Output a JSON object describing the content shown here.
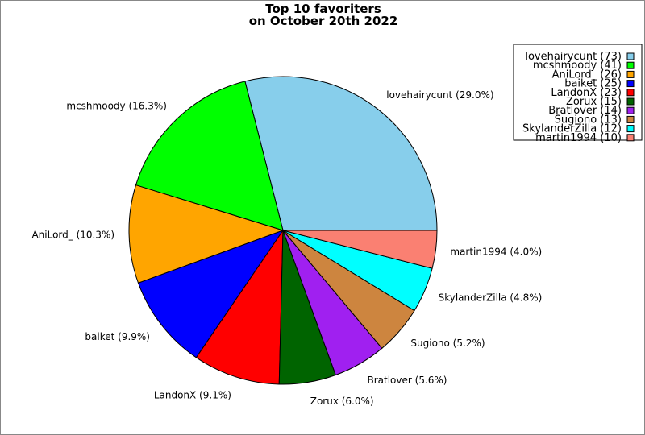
{
  "chart_data": {
    "type": "pie",
    "title": [
      "Top 10 favoriters",
      "on October 20th 2022"
    ],
    "start_angle_deg": 0,
    "direction": "counterclockwise",
    "legend_placement": "top-right",
    "slices": [
      {
        "name": "lovehairycunt",
        "value": 73,
        "pct": "29.0%",
        "color": "#87ceeb"
      },
      {
        "name": "mcshmoody",
        "value": 41,
        "pct": "16.3%",
        "color": "#00ff00"
      },
      {
        "name": "AniLord_",
        "value": 26,
        "pct": "10.3%",
        "color": "#ffa500"
      },
      {
        "name": "baiket",
        "value": 25,
        "pct": "9.9%",
        "color": "#0000ff"
      },
      {
        "name": "LandonX",
        "value": 23,
        "pct": "9.1%",
        "color": "#ff0000"
      },
      {
        "name": "Zorux",
        "value": 15,
        "pct": "6.0%",
        "color": "#006400"
      },
      {
        "name": "Bratlover",
        "value": 14,
        "pct": "5.6%",
        "color": "#a020f0"
      },
      {
        "name": "Sugiono",
        "value": 13,
        "pct": "5.2%",
        "color": "#cd853f"
      },
      {
        "name": "SkylanderZilla",
        "value": 12,
        "pct": "4.8%",
        "color": "#00ffff"
      },
      {
        "name": "martin1994",
        "value": 10,
        "pct": "4.0%",
        "color": "#fa8072"
      }
    ]
  }
}
